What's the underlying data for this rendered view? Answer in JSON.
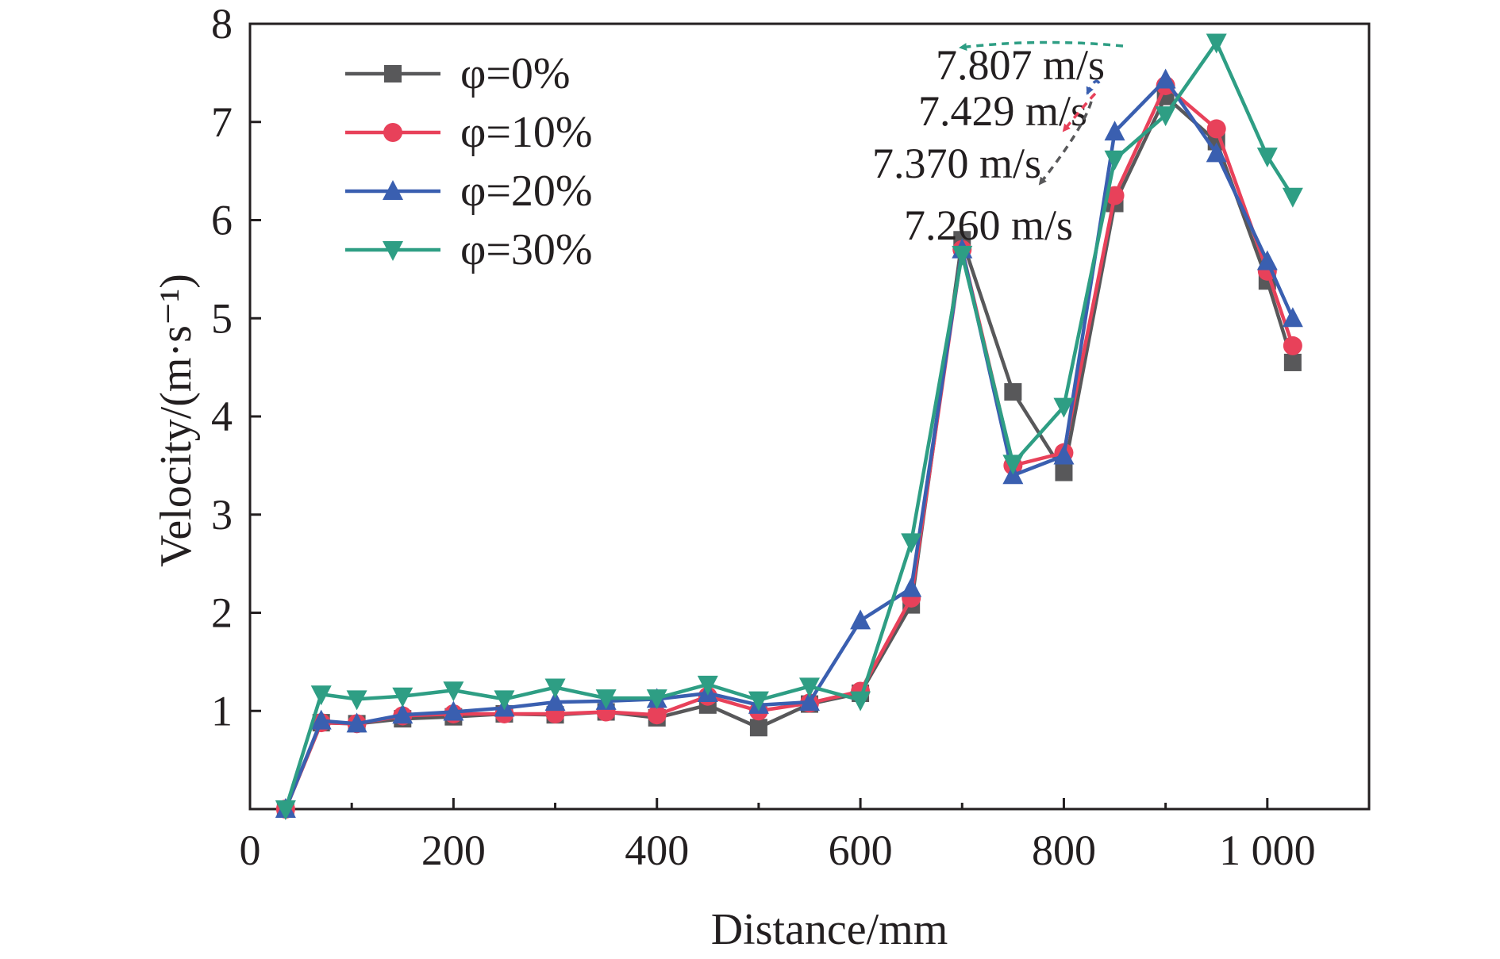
{
  "chart_data": {
    "type": "line",
    "xlabel": "Distance/mm",
    "ylabel": "Velocity/(m·s⁻¹)",
    "xlim": [
      0,
      1100
    ],
    "ylim": [
      0,
      8
    ],
    "x_ticks": [
      {
        "value": 0,
        "label": "0"
      },
      {
        "value": 200,
        "label": "200"
      },
      {
        "value": 400,
        "label": "400"
      },
      {
        "value": 600,
        "label": "600"
      },
      {
        "value": 800,
        "label": "800"
      },
      {
        "value": 1000,
        "label": "1 000"
      }
    ],
    "y_ticks": [
      {
        "value": 1,
        "label": "1"
      },
      {
        "value": 2,
        "label": "2"
      },
      {
        "value": 3,
        "label": "3"
      },
      {
        "value": 4,
        "label": "4"
      },
      {
        "value": 5,
        "label": "5"
      },
      {
        "value": 6,
        "label": "6"
      },
      {
        "value": 7,
        "label": "7"
      },
      {
        "value": 8,
        "label": "8"
      }
    ],
    "grid": false,
    "legend_position": "top-left",
    "x": [
      35,
      70,
      105,
      150,
      200,
      250,
      300,
      350,
      400,
      450,
      500,
      550,
      600,
      650,
      700,
      750,
      800,
      850,
      900,
      950,
      1000,
      1025
    ],
    "series": [
      {
        "name": "φ=0%",
        "color": "#58585a",
        "marker": "square",
        "values": [
          0,
          0.88,
          0.87,
          0.92,
          0.94,
          0.97,
          0.96,
          0.99,
          0.93,
          1.06,
          0.83,
          1.07,
          1.18,
          2.08,
          5.8,
          4.25,
          3.43,
          6.17,
          7.26,
          6.8,
          5.38,
          4.55
        ]
      },
      {
        "name": "φ=10%",
        "color": "#e8415a",
        "marker": "circle",
        "values": [
          0,
          0.88,
          0.87,
          0.95,
          0.97,
          0.97,
          0.97,
          0.99,
          0.96,
          1.15,
          1.0,
          1.08,
          1.2,
          2.15,
          5.7,
          3.5,
          3.63,
          6.25,
          7.37,
          6.93,
          5.48,
          4.72
        ]
      },
      {
        "name": "φ=20%",
        "color": "#3a5fb0",
        "marker": "triangle-up",
        "values": [
          0,
          0.9,
          0.87,
          0.96,
          0.99,
          1.03,
          1.09,
          1.1,
          1.12,
          1.18,
          1.06,
          1.09,
          1.92,
          2.25,
          5.7,
          3.4,
          3.6,
          6.9,
          7.43,
          6.68,
          5.58,
          5.0
        ]
      },
      {
        "name": "φ=30%",
        "color": "#2e9e84",
        "marker": "triangle-down",
        "values": [
          0,
          1.17,
          1.12,
          1.15,
          1.21,
          1.12,
          1.24,
          1.13,
          1.13,
          1.27,
          1.11,
          1.25,
          1.11,
          2.72,
          5.65,
          3.52,
          4.1,
          6.62,
          7.07,
          7.81,
          6.65,
          6.24
        ]
      }
    ],
    "annotations": [
      {
        "text": "7.807 m/s",
        "color": "#2e9e84",
        "series": "φ=30%"
      },
      {
        "text": "7.429 m/s",
        "color": "#3a5fb0",
        "series": "φ=20%"
      },
      {
        "text": "7.370 m/s",
        "color": "#e8415a",
        "series": "φ=10%"
      },
      {
        "text": "7.260 m/s",
        "color": "#58585a",
        "series": "φ=0%"
      }
    ]
  }
}
